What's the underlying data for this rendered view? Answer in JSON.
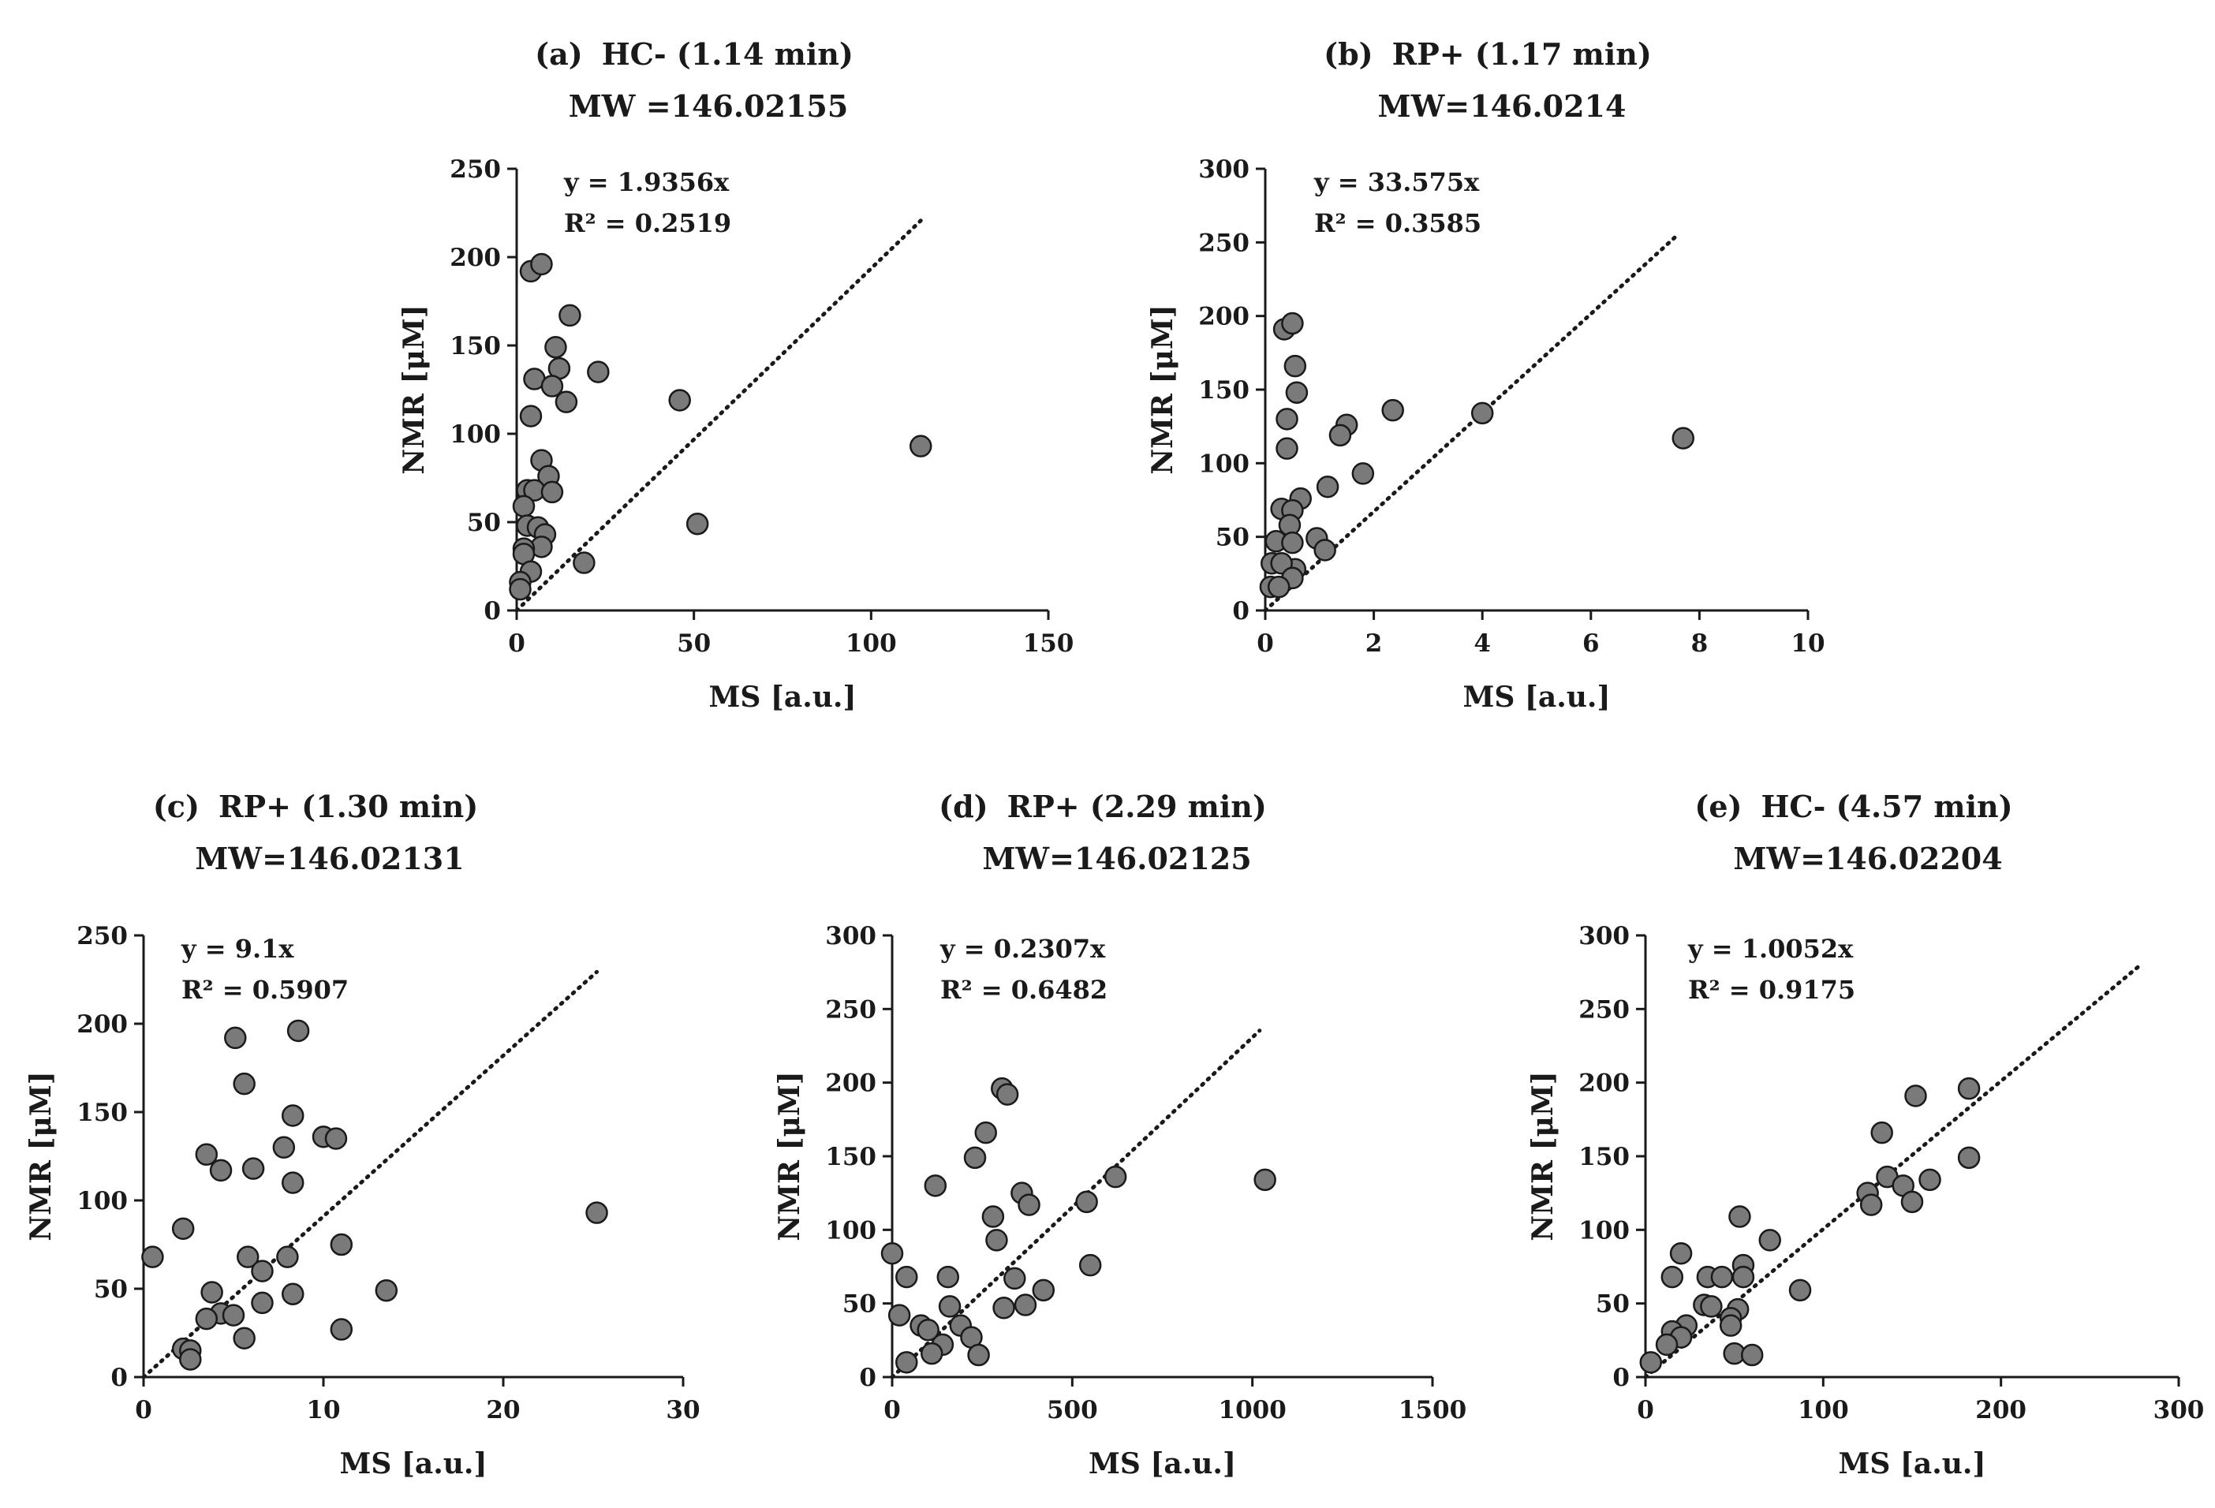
{
  "colors": {
    "marker_fill": "#7a7a7a",
    "marker_stroke": "#1a1a1a",
    "axis": "#1a1a1a",
    "trendline": "#1a1a1a"
  },
  "chart_data": [
    {
      "type": "scatter",
      "panel_label": "(a)",
      "title": "HC- (1.14 min)",
      "subtitle": "MW =146.02155",
      "xlabel": "MS [a.u.]",
      "ylabel": "NMR [μM]",
      "xlim": [
        0,
        150
      ],
      "ylim": [
        0,
        250
      ],
      "xticks": [
        0,
        50,
        100,
        150
      ],
      "yticks": [
        0,
        50,
        100,
        150,
        200,
        250
      ],
      "equation": "y = 1.9356x",
      "r2": "R² = 0.2519",
      "trend_slope": 1.9356,
      "trend_x_end": 114,
      "points": [
        [
          4,
          192
        ],
        [
          7,
          196
        ],
        [
          15,
          167
        ],
        [
          11,
          149
        ],
        [
          12,
          137
        ],
        [
          23,
          135
        ],
        [
          5,
          131
        ],
        [
          10,
          127
        ],
        [
          14,
          118
        ],
        [
          46,
          119
        ],
        [
          114,
          93
        ],
        [
          4,
          110
        ],
        [
          7,
          85
        ],
        [
          9,
          76
        ],
        [
          3,
          68
        ],
        [
          5,
          68
        ],
        [
          10,
          67
        ],
        [
          2,
          59
        ],
        [
          3,
          48
        ],
        [
          6,
          47
        ],
        [
          8,
          43
        ],
        [
          7,
          36
        ],
        [
          2,
          35
        ],
        [
          2,
          32
        ],
        [
          51,
          49
        ],
        [
          19,
          27
        ],
        [
          4,
          22
        ],
        [
          1,
          16
        ],
        [
          1,
          12
        ]
      ]
    },
    {
      "type": "scatter",
      "panel_label": "(b)",
      "title": "RP+ (1.17 min)",
      "subtitle": "MW=146.0214",
      "xlabel": "MS [a.u.]",
      "ylabel": "NMR [μM]",
      "xlim": [
        0,
        10
      ],
      "ylim": [
        0,
        300
      ],
      "xticks": [
        0,
        2,
        4,
        6,
        8,
        10
      ],
      "yticks": [
        0,
        50,
        100,
        150,
        200,
        250,
        300
      ],
      "equation": "y = 33.575x",
      "r2": "R² = 0.3585",
      "trend_slope": 33.575,
      "trend_x_end": 7.6,
      "points": [
        [
          0.35,
          191
        ],
        [
          0.5,
          195
        ],
        [
          0.55,
          166
        ],
        [
          0.58,
          148
        ],
        [
          0.4,
          130
        ],
        [
          1.5,
          126
        ],
        [
          1.38,
          119
        ],
        [
          2.35,
          136
        ],
        [
          4.0,
          134
        ],
        [
          7.7,
          117
        ],
        [
          0.4,
          110
        ],
        [
          1.8,
          93
        ],
        [
          1.15,
          84
        ],
        [
          0.65,
          76
        ],
        [
          0.3,
          69
        ],
        [
          0.5,
          68
        ],
        [
          0.45,
          58
        ],
        [
          0.2,
          47
        ],
        [
          0.5,
          46
        ],
        [
          0.95,
          49
        ],
        [
          1.1,
          41
        ],
        [
          0.55,
          28
        ],
        [
          0.12,
          32
        ],
        [
          0.3,
          32
        ],
        [
          0.5,
          22
        ],
        [
          0.1,
          16
        ],
        [
          0.25,
          16
        ]
      ]
    },
    {
      "type": "scatter",
      "panel_label": "(c)",
      "title": "RP+ (1.30 min)",
      "subtitle": "MW=146.02131",
      "xlabel": "MS [a.u.]",
      "ylabel": "NMR [μM]",
      "xlim": [
        0,
        30
      ],
      "ylim": [
        0,
        250
      ],
      "xticks": [
        0,
        10,
        20,
        30
      ],
      "yticks": [
        0,
        50,
        100,
        150,
        200,
        250
      ],
      "equation": "y = 9.1x",
      "r2": "R² = 0.5907",
      "trend_slope": 9.1,
      "trend_x_end": 25.2,
      "points": [
        [
          5.1,
          192
        ],
        [
          8.6,
          196
        ],
        [
          5.6,
          166
        ],
        [
          8.3,
          148
        ],
        [
          3.5,
          126
        ],
        [
          4.3,
          117
        ],
        [
          7.8,
          130
        ],
        [
          10.0,
          136
        ],
        [
          10.7,
          135
        ],
        [
          6.1,
          118
        ],
        [
          8.3,
          110
        ],
        [
          25.2,
          93
        ],
        [
          2.2,
          84
        ],
        [
          0.5,
          68
        ],
        [
          5.8,
          68
        ],
        [
          8.0,
          68
        ],
        [
          11.0,
          75
        ],
        [
          6.6,
          60
        ],
        [
          3.8,
          48
        ],
        [
          8.3,
          47
        ],
        [
          13.5,
          49
        ],
        [
          6.6,
          42
        ],
        [
          4.3,
          36
        ],
        [
          5.0,
          35
        ],
        [
          3.5,
          33
        ],
        [
          11.0,
          27
        ],
        [
          5.6,
          22
        ],
        [
          2.2,
          16
        ],
        [
          2.6,
          15
        ],
        [
          2.6,
          10
        ]
      ]
    },
    {
      "type": "scatter",
      "panel_label": "(d)",
      "title": "RP+ (2.29 min)",
      "subtitle": "MW=146.02125",
      "xlabel": "MS [a.u.]",
      "ylabel": "NMR [μM]",
      "xlim": [
        0,
        1500
      ],
      "ylim": [
        0,
        300
      ],
      "xticks": [
        0,
        500,
        1000,
        1500
      ],
      "yticks": [
        0,
        50,
        100,
        150,
        200,
        250,
        300
      ],
      "equation": "y = 0.2307x",
      "r2": "R² = 0.6482",
      "trend_slope": 0.2307,
      "trend_x_end": 1020,
      "points": [
        [
          305,
          196
        ],
        [
          320,
          192
        ],
        [
          260,
          166
        ],
        [
          230,
          149
        ],
        [
          120,
          130
        ],
        [
          620,
          136
        ],
        [
          1035,
          134
        ],
        [
          360,
          125
        ],
        [
          380,
          117
        ],
        [
          540,
          119
        ],
        [
          280,
          109
        ],
        [
          290,
          93
        ],
        [
          0,
          84
        ],
        [
          550,
          76
        ],
        [
          40,
          68
        ],
        [
          155,
          68
        ],
        [
          340,
          67
        ],
        [
          420,
          59
        ],
        [
          160,
          48
        ],
        [
          310,
          47
        ],
        [
          370,
          49
        ],
        [
          20,
          42
        ],
        [
          80,
          35
        ],
        [
          100,
          32
        ],
        [
          190,
          35
        ],
        [
          220,
          27
        ],
        [
          140,
          22
        ],
        [
          110,
          16
        ],
        [
          240,
          15
        ],
        [
          40,
          10
        ]
      ]
    },
    {
      "type": "scatter",
      "panel_label": "(e)",
      "title": "HC- (4.57 min)",
      "subtitle": "MW=146.02204",
      "xlabel": "MS [a.u.]",
      "ylabel": "NMR [μM]",
      "xlim": [
        0,
        300
      ],
      "ylim": [
        0,
        300
      ],
      "xticks": [
        0,
        100,
        200,
        300
      ],
      "yticks": [
        0,
        50,
        100,
        150,
        200,
        250,
        300
      ],
      "equation": "y = 1.0052x",
      "r2": "R² = 0.9175",
      "trend_slope": 1.0052,
      "trend_x_end": 278,
      "points": [
        [
          182,
          196
        ],
        [
          152,
          191
        ],
        [
          133,
          166
        ],
        [
          182,
          149
        ],
        [
          160,
          134
        ],
        [
          136,
          136
        ],
        [
          145,
          130
        ],
        [
          150,
          119
        ],
        [
          125,
          125
        ],
        [
          127,
          117
        ],
        [
          53,
          109
        ],
        [
          70,
          93
        ],
        [
          20,
          84
        ],
        [
          87,
          59
        ],
        [
          15,
          68
        ],
        [
          35,
          68
        ],
        [
          43,
          68
        ],
        [
          55,
          76
        ],
        [
          55,
          68
        ],
        [
          33,
          49
        ],
        [
          37,
          48
        ],
        [
          52,
          46
        ],
        [
          48,
          40
        ],
        [
          48,
          35
        ],
        [
          23,
          35
        ],
        [
          15,
          31
        ],
        [
          20,
          27
        ],
        [
          12,
          22
        ],
        [
          50,
          16
        ],
        [
          60,
          15
        ],
        [
          3,
          10
        ]
      ]
    }
  ]
}
